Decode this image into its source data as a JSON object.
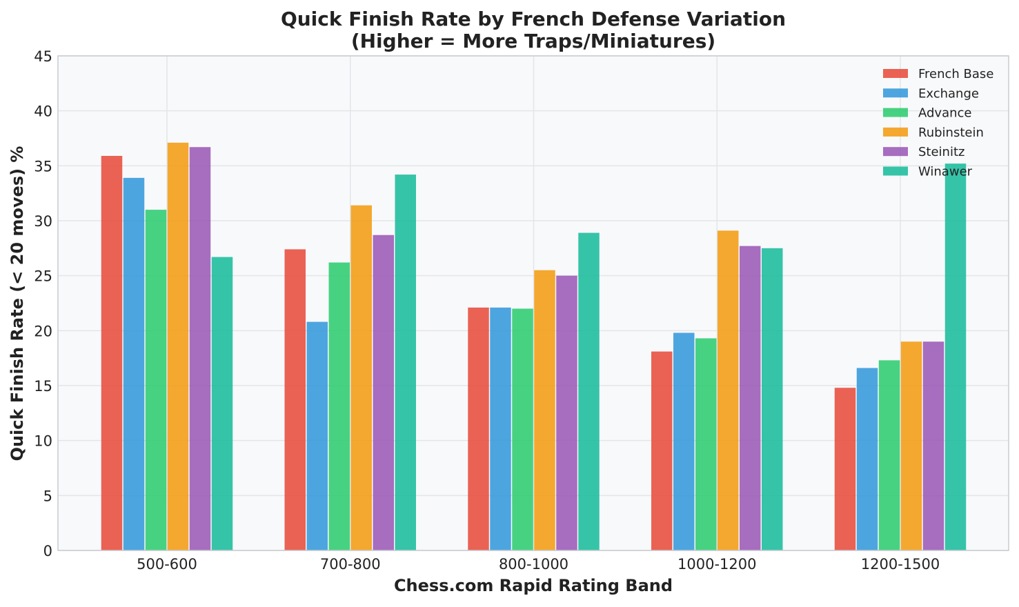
{
  "chart_data": {
    "type": "bar",
    "title": "Quick Finish Rate by French Defense Variation",
    "subtitle": "(Higher = More Traps/Miniatures)",
    "xlabel": "Chess.com Rapid Rating Band",
    "ylabel": "Quick Finish Rate (< 20 moves) %",
    "categories": [
      "500-600",
      "700-800",
      "800-1000",
      "1000-1200",
      "1200-1500"
    ],
    "ylim": [
      0,
      45
    ],
    "yticks": [
      0,
      5,
      10,
      15,
      20,
      25,
      30,
      35,
      40,
      45
    ],
    "grid": true,
    "legend_position": "top-right",
    "series": [
      {
        "name": "French Base",
        "color": "#e74c3c",
        "values": [
          35.9,
          27.4,
          22.1,
          18.1,
          14.8
        ]
      },
      {
        "name": "Exchange",
        "color": "#3498db",
        "values": [
          33.9,
          20.8,
          22.1,
          19.8,
          16.6
        ]
      },
      {
        "name": "Advance",
        "color": "#2ecc71",
        "values": [
          31.0,
          26.2,
          22.0,
          19.3,
          17.3
        ]
      },
      {
        "name": "Rubinstein",
        "color": "#f39c12",
        "values": [
          37.1,
          31.4,
          25.5,
          29.1,
          19.0
        ]
      },
      {
        "name": "Steinitz",
        "color": "#9b59b6",
        "values": [
          36.7,
          28.7,
          25.0,
          27.7,
          19.0
        ]
      },
      {
        "name": "Winawer",
        "color": "#1abc9c",
        "values": [
          26.7,
          34.2,
          28.9,
          27.5,
          35.2
        ]
      }
    ]
  }
}
